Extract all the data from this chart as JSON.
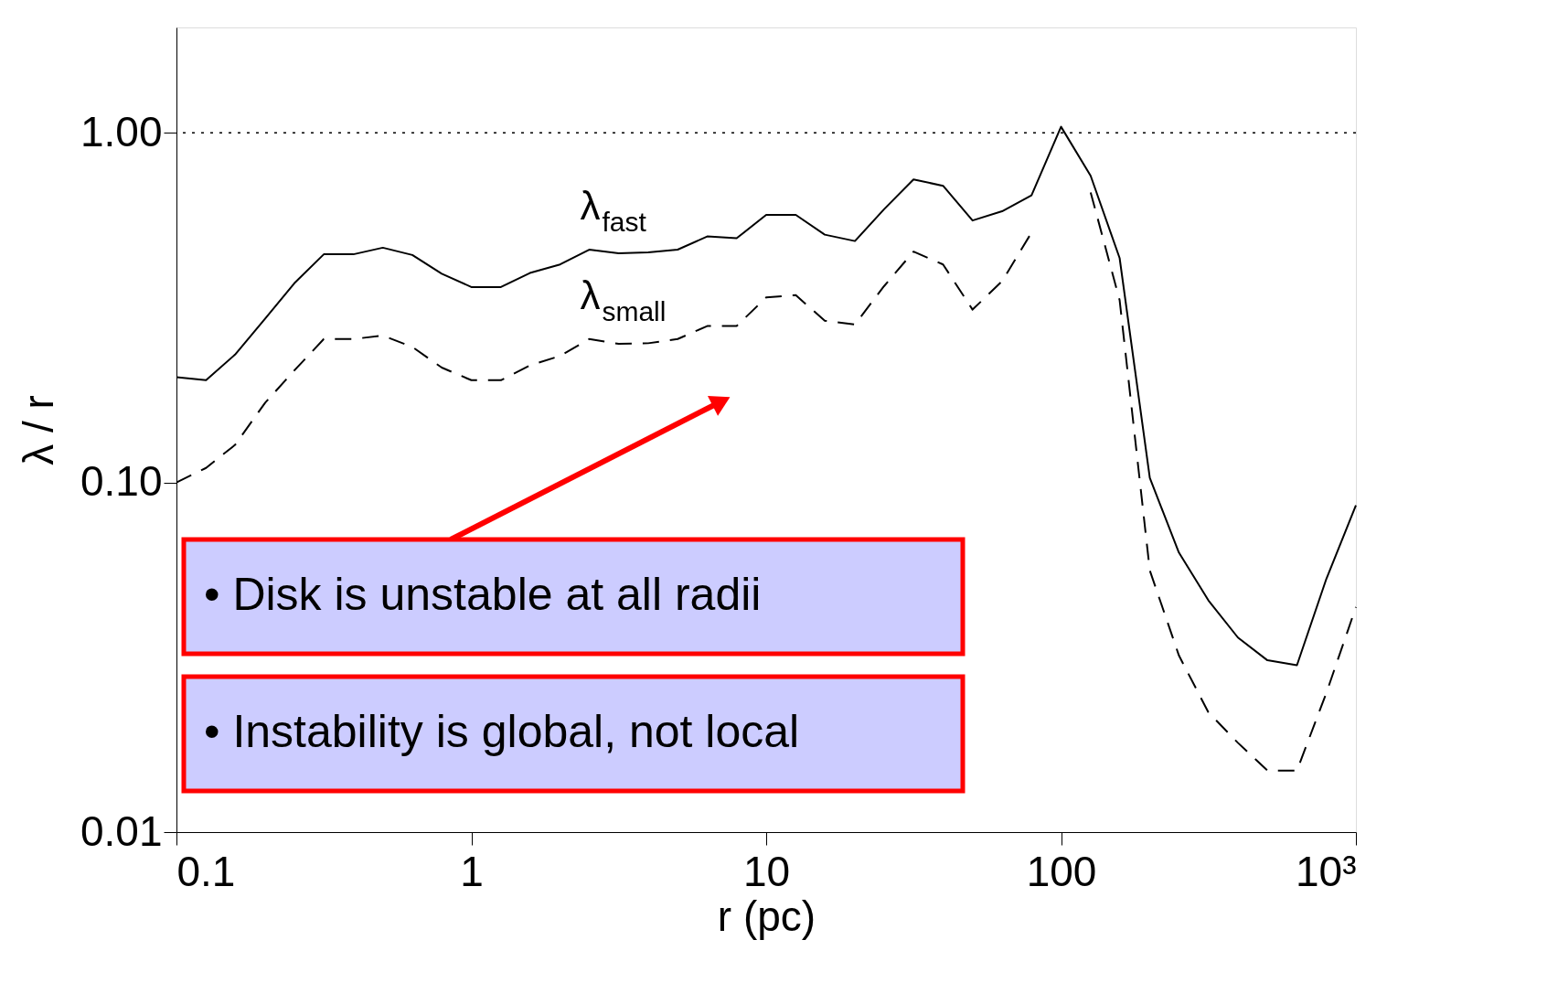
{
  "chart_data": {
    "type": "line",
    "xlabel": "r (pc)",
    "ylabel": "λ / r",
    "x": [
      0.1,
      0.126,
      0.158,
      0.2,
      0.251,
      0.316,
      0.398,
      0.501,
      0.631,
      0.794,
      1,
      1.26,
      1.58,
      2,
      2.51,
      3.16,
      3.98,
      5.01,
      6.31,
      7.94,
      10,
      12.6,
      15.8,
      20,
      25.1,
      31.6,
      39.8,
      50.1,
      63.1,
      79.4,
      100,
      126,
      158,
      200,
      251,
      316,
      398,
      501,
      631,
      794,
      1000
    ],
    "series": [
      {
        "name": "λ$_{fast}$",
        "color": "#000000",
        "line_style": "solid",
        "values": [
          0.2,
          0.196,
          0.232,
          0.294,
          0.371,
          0.449,
          0.449,
          0.469,
          0.447,
          0.395,
          0.362,
          0.362,
          0.397,
          0.42,
          0.463,
          0.452,
          0.455,
          0.463,
          0.505,
          0.499,
          0.582,
          0.582,
          0.511,
          0.49,
          0.604,
          0.735,
          0.705,
          0.561,
          0.596,
          0.662,
          1.04,
          0.753,
          0.438,
          0.103,
          0.063,
          0.046,
          0.036,
          0.031,
          0.03,
          0.053,
          0.086
        ]
      },
      {
        "name": "λ$_{small}$",
        "color": "#000000",
        "line_style": "dashed",
        "values": [
          0.1,
          0.11,
          0.128,
          0.169,
          0.209,
          0.257,
          0.257,
          0.263,
          0.244,
          0.213,
          0.196,
          0.196,
          0.216,
          0.23,
          0.257,
          0.249,
          0.25,
          0.257,
          0.28,
          0.28,
          0.338,
          0.343,
          0.29,
          0.283,
          0.364,
          0.457,
          0.42,
          0.312,
          0.376,
          0.518,
          null,
          0.675,
          0.332,
          0.056,
          0.032,
          0.022,
          0.018,
          0.015,
          0.015,
          0.025,
          0.044
        ]
      }
    ],
    "xlim": [
      0.1,
      1000
    ],
    "ylim": [
      0.01,
      2
    ],
    "log": "xy",
    "xticks": [
      0.1,
      1,
      10,
      100,
      {
        "value": 1000,
        "label": "10³"
      }
    ],
    "yticks": [
      {
        "value": 0.01,
        "label": "0.01"
      },
      {
        "value": 0.1,
        "label": "0.10"
      },
      {
        "value": 1,
        "label": "1.00"
      }
    ],
    "ref_lines": [
      {
        "axis": "y",
        "value": 1,
        "line_style": "dotted",
        "color": "#000000"
      }
    ],
    "annotations": [
      "• Disk is unstable at all radii",
      "• Instability is global, not local"
    ],
    "grid": false
  }
}
